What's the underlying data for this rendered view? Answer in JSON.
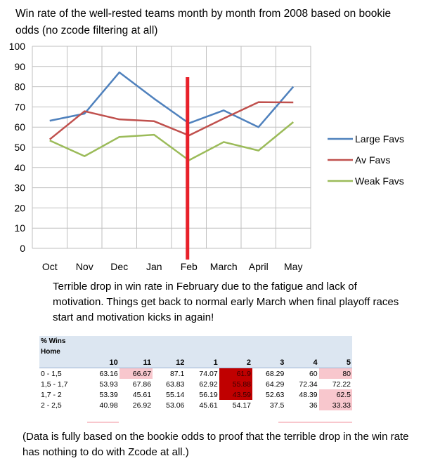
{
  "title": "Win rate of the well-rested teams month by month from 2008 based on bookie odds (no zcode filtering at all)",
  "note": "Terrible drop in win rate in February due to the fatigue and lack of motivation. Things get back to normal early March when final playoff races start and motivation kicks in again!",
  "footnote": "(Data is fully based on the bookie odds to proof that the terrible drop in the win rate has nothing to do with Zcode at all.)",
  "colors": {
    "large": "#4f81bd",
    "av": "#c0504d",
    "weak": "#9bbb59",
    "marker": "#e8202a",
    "grid": "#bfbfbf",
    "pink": "#f8c7cd",
    "dark": "#c00000",
    "band": "#dce6f1"
  },
  "chart_data": {
    "type": "line",
    "categories": [
      "Oct",
      "Nov",
      "Dec",
      "Jan",
      "Feb",
      "March",
      "April",
      "May"
    ],
    "ylim": [
      0,
      100
    ],
    "yticks": [
      "0",
      "10",
      "20",
      "30",
      "40",
      "50",
      "60",
      "70",
      "80",
      "90",
      "100"
    ],
    "grid": true,
    "legend": "right",
    "highlight_category": "Feb",
    "series": [
      {
        "name": "Large Favs",
        "values": [
          63.16,
          66.67,
          87.1,
          74.07,
          61.9,
          68.29,
          60,
          80
        ]
      },
      {
        "name": "Av Favs",
        "values": [
          53.93,
          67.86,
          63.83,
          62.92,
          55.88,
          64.29,
          72.34,
          72.22
        ]
      },
      {
        "name": "Weak Favs",
        "values": [
          53.39,
          45.61,
          55.14,
          56.19,
          43.59,
          52.63,
          48.39,
          62.5
        ]
      }
    ]
  },
  "table": {
    "title_line1": "% Wins",
    "title_line2": "Home",
    "columns": [
      "10",
      "11",
      "12",
      "1",
      "2",
      "3",
      "4",
      "5"
    ],
    "rows": [
      {
        "label": "0 - 1,5",
        "values": [
          "63.16",
          "66.67",
          "87.1",
          "74.07",
          "61.9",
          "68.29",
          "60",
          "80"
        ],
        "style": [
          "",
          "pink",
          "",
          "",
          "dark",
          "",
          "",
          "pink"
        ]
      },
      {
        "label": "1,5 - 1,7",
        "values": [
          "53.93",
          "67.86",
          "63.83",
          "62.92",
          "55.88",
          "64.29",
          "72.34",
          "72.22"
        ],
        "style": [
          "",
          "",
          "",
          "",
          "dark",
          "",
          "",
          ""
        ]
      },
      {
        "label": "1,7 - 2",
        "values": [
          "53.39",
          "45.61",
          "55.14",
          "56.19",
          "43.59",
          "52.63",
          "48.39",
          "62.5"
        ],
        "style": [
          "",
          "",
          "",
          "",
          "dark",
          "",
          "",
          "pink"
        ]
      },
      {
        "label": "2 - 2,5",
        "values": [
          "40.98",
          "26.92",
          "53.06",
          "45.61",
          "54.17",
          "37.5",
          "36",
          "33.33"
        ],
        "style": [
          "",
          "",
          "",
          "",
          "",
          "",
          "",
          "pink"
        ]
      }
    ]
  }
}
